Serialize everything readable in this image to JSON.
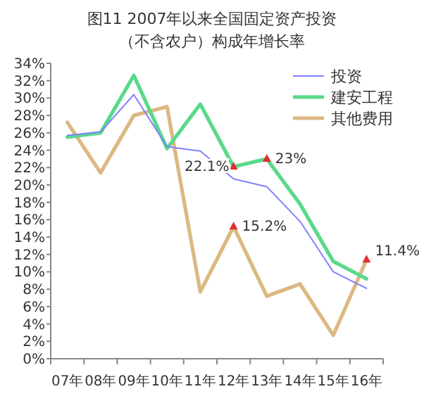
{
  "chart_data": {
    "type": "line",
    "title": "图11  2007年以来全国固定资产投资",
    "subtitle": "（不含农户）构成年增长率",
    "categories": [
      "07年",
      "08年",
      "09年",
      "10年",
      "11年",
      "12年",
      "13年",
      "14年",
      "15年",
      "16年"
    ],
    "series": [
      {
        "name": "投资",
        "color": "#8080ff",
        "values": [
          25.7,
          26.1,
          30.4,
          24.4,
          23.9,
          20.7,
          19.8,
          15.8,
          10.0,
          8.1
        ]
      },
      {
        "name": "建安工程",
        "color": "#5ad98a",
        "values": [
          25.5,
          26.0,
          32.6,
          24.2,
          29.3,
          22.1,
          23.0,
          17.8,
          11.2,
          9.2
        ]
      },
      {
        "name": "其他费用",
        "color": "#dcb882",
        "values": [
          27.2,
          21.4,
          28.0,
          29.0,
          7.7,
          15.2,
          7.2,
          8.6,
          2.7,
          11.4
        ]
      }
    ],
    "ylim": [
      0,
      34
    ],
    "yticks": [
      {
        "value": 0,
        "label": "0%"
      },
      {
        "value": 2,
        "label": "2%"
      },
      {
        "value": 4,
        "label": "4%"
      },
      {
        "value": 6,
        "label": "6%"
      },
      {
        "value": 8,
        "label": "8%"
      },
      {
        "value": 10,
        "label": "10%"
      },
      {
        "value": 12,
        "label": "12%"
      },
      {
        "value": 14,
        "label": "14%"
      },
      {
        "value": 16,
        "label": "16%"
      },
      {
        "value": 18,
        "label": "18%"
      },
      {
        "value": 20,
        "label": "20%"
      },
      {
        "value": 22,
        "label": "22%"
      },
      {
        "value": 24,
        "label": "24%"
      },
      {
        "value": 26,
        "label": "26%"
      },
      {
        "value": 28,
        "label": "28%"
      },
      {
        "value": 30,
        "label": "30%"
      },
      {
        "value": 32,
        "label": "32%"
      },
      {
        "value": 34,
        "label": "34%"
      }
    ],
    "annotations": [
      {
        "text": "22.1%",
        "x": "12年",
        "y": 22.1
      },
      {
        "text": "23%",
        "x": "13年",
        "y": 23.0
      },
      {
        "text": "15.2%",
        "x": "12年",
        "y": 15.2
      },
      {
        "text": "11.4%",
        "x": "16年",
        "y": 11.4
      }
    ],
    "legend": "top right",
    "grid": false,
    "marker": "none",
    "line_style": "solid"
  }
}
